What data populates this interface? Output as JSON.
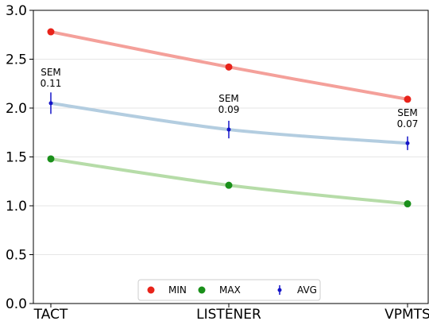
{
  "chart_data": {
    "type": "line",
    "categories": [
      "TACT",
      "LISTENER",
      "VPMTS"
    ],
    "ylim": [
      0.0,
      3.0
    ],
    "yticks": [
      0.0,
      0.5,
      1.0,
      1.5,
      2.0,
      2.5,
      3.0
    ],
    "ytick_labels": [
      "0.0",
      "0.5",
      "1.0",
      "1.5",
      "2.0",
      "2.5",
      "3.0"
    ],
    "grid": "horizontal",
    "legend_position": "bottom-center",
    "series": [
      {
        "name": "MIN",
        "values": [
          2.78,
          2.42,
          2.09
        ],
        "line_color": "#f4a09a",
        "marker_color": "#e8231a"
      },
      {
        "name": "MAX",
        "values": [
          1.48,
          1.21,
          1.02
        ],
        "line_color": "#b6dca8",
        "marker_color": "#1a8f1a"
      },
      {
        "name": "AVG",
        "values": [
          2.05,
          1.78,
          1.64
        ],
        "errors": [
          0.11,
          0.09,
          0.07
        ],
        "line_color": "#b3cde0",
        "marker_color": "#1414c8"
      }
    ],
    "annotations": [
      {
        "category": "TACT",
        "label": "SEM",
        "value": "0.11"
      },
      {
        "category": "LISTENER",
        "label": "SEM",
        "value": "0.09"
      },
      {
        "category": "VPMTS",
        "label": "SEM",
        "value": "0.07"
      }
    ]
  }
}
